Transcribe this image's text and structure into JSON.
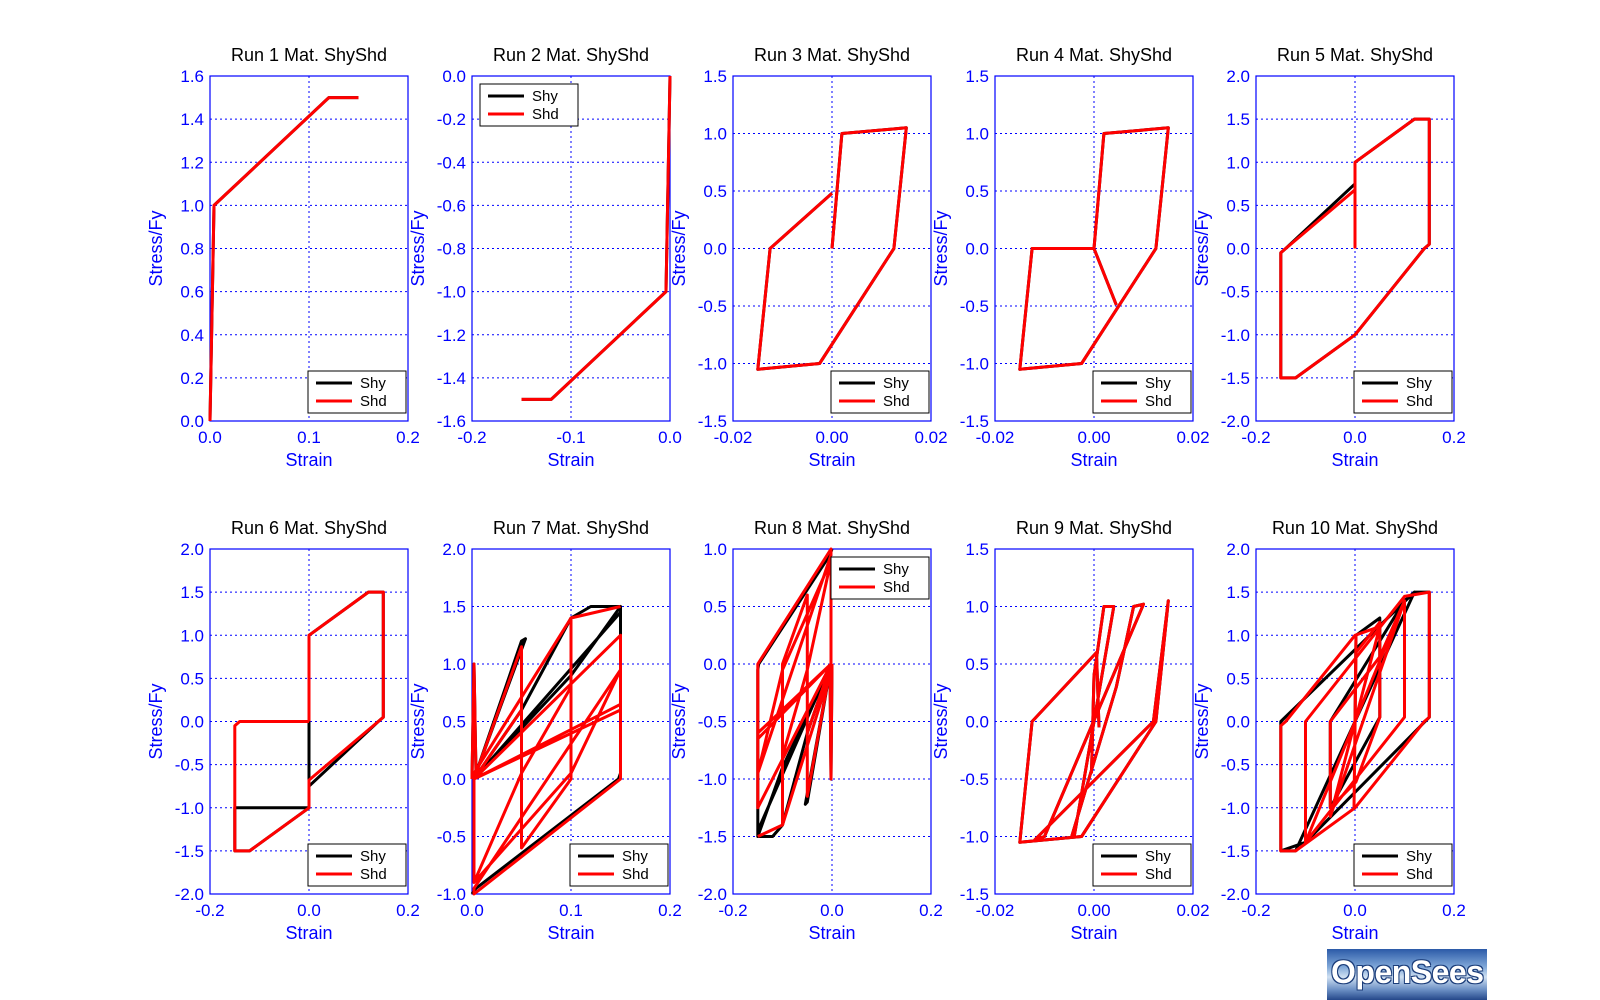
{
  "colors": {
    "Shy": "#000000",
    "Shd": "#ff0000",
    "axes": "#0000ff",
    "grid": "#0000ff",
    "text": "#000000"
  },
  "logo": {
    "text": "OpenSees"
  },
  "chart_data": [
    {
      "type": "line",
      "title": "Run 1   Mat. ShyShd",
      "xlabel": "Strain",
      "ylabel": "Stress/Fy",
      "xlim": [
        0,
        0.2
      ],
      "ylim": [
        0,
        1.6
      ],
      "xticks": [
        "0.0",
        "0.1",
        "0.2"
      ],
      "yticks": [
        "0.0",
        "0.2",
        "0.4",
        "0.6",
        "0.8",
        "1.0",
        "1.2",
        "1.4",
        "1.6"
      ],
      "legend": "bottom-right",
      "series": [
        {
          "name": "Shy",
          "x": [
            0,
            0.002,
            0.004,
            0.12,
            0.15
          ],
          "y": [
            0,
            0.5,
            1.0,
            1.5,
            1.5
          ]
        },
        {
          "name": "Shd",
          "x": [
            0,
            0.002,
            0.004,
            0.12,
            0.15
          ],
          "y": [
            0,
            0.5,
            1.0,
            1.5,
            1.5
          ]
        }
      ]
    },
    {
      "type": "line",
      "title": "Run 2   Mat. ShyShd",
      "xlabel": "Strain",
      "ylabel": "Stress/Fy",
      "xlim": [
        -0.2,
        0
      ],
      "ylim": [
        -1.6,
        0
      ],
      "xticks": [
        "-0.2",
        "-0.1",
        "0.0"
      ],
      "yticks": [
        "-1.6",
        "-1.4",
        "-1.2",
        "-1.0",
        "-0.8",
        "-0.6",
        "-0.4",
        "-0.2",
        "0.0"
      ],
      "legend": "top-left",
      "series": [
        {
          "name": "Shy",
          "x": [
            0,
            -0.002,
            -0.004,
            -0.12,
            -0.15
          ],
          "y": [
            0,
            -0.5,
            -1.0,
            -1.5,
            -1.5
          ]
        },
        {
          "name": "Shd",
          "x": [
            0,
            -0.002,
            -0.004,
            -0.12,
            -0.15
          ],
          "y": [
            0,
            -0.5,
            -1.0,
            -1.5,
            -1.5
          ]
        }
      ]
    },
    {
      "type": "line",
      "title": "Run 3   Mat. ShyShd",
      "xlabel": "Strain",
      "ylabel": "Stress/Fy",
      "xlim": [
        -0.02,
        0.02
      ],
      "ylim": [
        -1.5,
        1.5
      ],
      "xticks": [
        "-0.02",
        "0.00",
        "0.02"
      ],
      "yticks": [
        "-1.5",
        "-1.0",
        "-0.5",
        "0.0",
        "0.5",
        "1.0",
        "1.5"
      ],
      "legend": "bottom-right",
      "series": [
        {
          "name": "Shy",
          "x": [
            0,
            0.002,
            0.015,
            0.0125,
            -0.0025,
            -0.015,
            -0.0125,
            0
          ],
          "y": [
            0,
            1.0,
            1.05,
            0,
            -1.0,
            -1.05,
            0,
            0.48
          ]
        },
        {
          "name": "Shd",
          "x": [
            0,
            0.002,
            0.015,
            0.0125,
            -0.0025,
            -0.015,
            -0.0125,
            0
          ],
          "y": [
            0,
            1.0,
            1.05,
            0,
            -1.0,
            -1.05,
            0,
            0.48
          ]
        }
      ]
    },
    {
      "type": "line",
      "title": "Run 4   Mat. ShyShd",
      "xlabel": "Strain",
      "ylabel": "Stress/Fy",
      "xlim": [
        -0.02,
        0.02
      ],
      "ylim": [
        -1.5,
        1.5
      ],
      "xticks": [
        "-0.02",
        "0.00",
        "0.02"
      ],
      "yticks": [
        "-1.5",
        "-1.0",
        "-0.5",
        "0.0",
        "0.5",
        "1.0",
        "1.5"
      ],
      "legend": "bottom-right",
      "series": [
        {
          "name": "Shy",
          "x": [
            0,
            0.002,
            0.015,
            0.0125,
            -0.0025,
            -0.015,
            -0.0125,
            0,
            0.0045
          ],
          "y": [
            0,
            1.0,
            1.05,
            0,
            -1.0,
            -1.05,
            0,
            0,
            -0.49
          ]
        },
        {
          "name": "Shd",
          "x": [
            0,
            0.002,
            0.015,
            0.0125,
            -0.0025,
            -0.015,
            -0.0125,
            0,
            0.0045
          ],
          "y": [
            0,
            1.0,
            1.05,
            0,
            -1.0,
            -1.05,
            0,
            0,
            -0.49
          ]
        }
      ]
    },
    {
      "type": "line",
      "title": "Run 5   Mat. ShyShd",
      "xlabel": "Strain",
      "ylabel": "Stress/Fy",
      "xlim": [
        -0.2,
        0.2
      ],
      "ylim": [
        -2,
        2
      ],
      "xticks": [
        "-0.2",
        "0.0",
        "0.2"
      ],
      "yticks": [
        "-2.0",
        "-1.5",
        "-1.0",
        "-0.5",
        "0.0",
        "0.5",
        "1.0",
        "1.5",
        "2.0"
      ],
      "legend": "bottom-right",
      "series": [
        {
          "name": "Shy",
          "x": [
            0,
            0,
            0.12,
            0.15,
            0.15,
            0.14,
            0,
            -0.12,
            -0.15,
            -0.15,
            -0.14,
            0
          ],
          "y": [
            0,
            1.0,
            1.5,
            1.5,
            0.05,
            0,
            -1.0,
            -1.5,
            -1.5,
            -0.05,
            0,
            0.75
          ]
        },
        {
          "name": "Shd",
          "x": [
            0,
            0,
            0.12,
            0.15,
            0.15,
            0.14,
            0,
            -0.12,
            -0.15,
            -0.15,
            -0.14,
            0
          ],
          "y": [
            0,
            1.0,
            1.5,
            1.5,
            0.05,
            0,
            -1.0,
            -1.5,
            -1.5,
            -0.05,
            0,
            0.68
          ]
        }
      ]
    },
    {
      "type": "line",
      "title": "Run 6   Mat. ShyShd",
      "xlabel": "Strain",
      "ylabel": "Stress/Fy",
      "xlim": [
        -0.2,
        0.2
      ],
      "ylim": [
        -2,
        2
      ],
      "xticks": [
        "-0.2",
        "0.0",
        "0.2"
      ],
      "yticks": [
        "-2.0",
        "-1.5",
        "-1.0",
        "-0.5",
        "0.0",
        "0.5",
        "1.0",
        "1.5",
        "2.0"
      ],
      "legend": "bottom-right",
      "series": [
        {
          "name": "Shy",
          "x": [
            0,
            0,
            0.12,
            0.15,
            0.15,
            0.14,
            0,
            0,
            -0.14,
            -0.15,
            -0.15,
            -0.12,
            0,
            0,
            -0.14
          ],
          "y": [
            0,
            1.0,
            1.5,
            1.5,
            0.05,
            0,
            -0.75,
            -1.0,
            -1.0,
            -1.0,
            -1.5,
            -1.5,
            -1.0,
            0,
            0
          ]
        },
        {
          "name": "Shd",
          "x": [
            0,
            0,
            0.12,
            0.15,
            0.15,
            0.14,
            0,
            0,
            -0.12,
            -0.15,
            -0.15,
            -0.14,
            0
          ],
          "y": [
            0,
            1.0,
            1.5,
            1.5,
            0.05,
            0,
            -0.68,
            -1.0,
            -1.5,
            -1.5,
            -0.05,
            0,
            0
          ]
        }
      ]
    },
    {
      "type": "line",
      "title": "Run 7   Mat. ShyShd",
      "xlabel": "Strain",
      "ylabel": "Stress/Fy",
      "xlim": [
        0,
        0.2
      ],
      "ylim": [
        -1,
        2
      ],
      "xticks": [
        "0.0",
        "0.1",
        "0.2"
      ],
      "yticks": [
        "-1.0",
        "-0.5",
        "0.0",
        "0.5",
        "1.0",
        "1.5",
        "2.0"
      ],
      "legend": "bottom-right",
      "series": [
        {
          "name": "Shy",
          "x": [
            0,
            0.002,
            0.004,
            0.05,
            0.054,
            0.004,
            0.002,
            0.05,
            0.1,
            0.12,
            0.15,
            0.15,
            0.002,
            0.1,
            0.15,
            0.15,
            0.148,
            0.004,
            0
          ],
          "y": [
            0,
            1.0,
            0.05,
            1.2,
            1.22,
            0.05,
            0,
            0.6,
            1.4,
            1.5,
            1.5,
            1.45,
            0,
            0.9,
            1.5,
            0.05,
            0,
            -0.95,
            -1.0
          ]
        },
        {
          "name": "Shd",
          "x": [
            0,
            0.002,
            0.004,
            0.002,
            0.05,
            0.05,
            0.002,
            0.002,
            0.05,
            0.1,
            0.1,
            0.002,
            0.002,
            0.1,
            0.15,
            0.15,
            0.002,
            0.15,
            0.15,
            0.002,
            0.002,
            0.15,
            0.15,
            0.002,
            0.05,
            0.05,
            0.1,
            0.1,
            0.15
          ],
          "y": [
            0,
            1.0,
            0.05,
            0,
            0.6,
            1.15,
            0,
            -0.9,
            0.05,
            0.8,
            1.4,
            0.05,
            -0.9,
            0.05,
            0.95,
            1.25,
            0,
            0.6,
            0.95,
            -0.95,
            -1.0,
            0,
            0.65,
            0,
            1.15,
            -0.6,
            0,
            1.4,
            1.5
          ]
        }
      ]
    },
    {
      "type": "line",
      "title": "Run 8   Mat. ShyShd",
      "xlabel": "Strain",
      "ylabel": "Stress/Fy",
      "xlim": [
        -0.2,
        0.2
      ],
      "ylim": [
        -2,
        1
      ],
      "xticks": [
        "-0.2",
        "0.0",
        "0.2"
      ],
      "yticks": [
        "-2.0",
        "-1.5",
        "-1.0",
        "-0.5",
        "0.0",
        "0.5",
        "1.0"
      ],
      "legend": "top-right",
      "series": [
        {
          "name": "Shy",
          "x": [
            0,
            -0.002,
            -0.004,
            -0.05,
            -0.054,
            -0.004,
            -0.002,
            -0.05,
            -0.1,
            -0.12,
            -0.15,
            -0.15,
            -0.002,
            -0.1,
            -0.15,
            -0.15,
            -0.148,
            -0.004,
            0
          ],
          "y": [
            0,
            -1.0,
            -0.05,
            -1.2,
            -1.22,
            -0.05,
            0,
            -0.6,
            -1.4,
            -1.5,
            -1.5,
            -1.45,
            0,
            -0.9,
            -1.5,
            -0.05,
            0,
            0.95,
            1.0
          ]
        },
        {
          "name": "Shd",
          "x": [
            0,
            -0.002,
            -0.004,
            -0.002,
            -0.05,
            -0.05,
            -0.002,
            -0.002,
            -0.05,
            -0.1,
            -0.1,
            -0.002,
            -0.002,
            -0.1,
            -0.15,
            -0.15,
            -0.002,
            -0.15,
            -0.15,
            -0.002,
            -0.002,
            -0.15,
            -0.15,
            -0.002,
            -0.05,
            -0.05,
            -0.1,
            -0.1,
            -0.15
          ],
          "y": [
            0,
            -1.0,
            -0.05,
            0,
            -0.6,
            -1.15,
            0,
            0.9,
            -0.05,
            -0.8,
            -1.4,
            -0.05,
            0.9,
            -0.05,
            -0.95,
            -1.25,
            0,
            -0.6,
            -0.95,
            0.95,
            1.0,
            0,
            -0.65,
            0,
            -1.15,
            0.6,
            0,
            -1.4,
            -1.5
          ]
        }
      ]
    },
    {
      "type": "line",
      "title": "Run 9   Mat. ShyShd",
      "xlabel": "Strain",
      "ylabel": "Stress/Fy",
      "xlim": [
        -0.02,
        0.02
      ],
      "ylim": [
        -1.5,
        1.5
      ],
      "xticks": [
        "-0.02",
        "0.00",
        "0.02"
      ],
      "yticks": [
        "-1.5",
        "-1.0",
        "-0.5",
        "0.0",
        "0.5",
        "1.0",
        "1.5"
      ],
      "legend": "bottom-right",
      "series": [
        {
          "name": "Shy",
          "x": [
            -0.0005,
            0,
            0.002,
            0.004,
            -0.004,
            -0.0045,
            0.0045,
            0.008,
            0.01,
            -0.01,
            -0.012,
            0.012,
            0.015,
            0.0125,
            -0.0025,
            -0.015,
            -0.0125,
            0.0005,
            0.001
          ],
          "y": [
            -0.45,
            0.4,
            1.0,
            1.0,
            -1.0,
            -1.0,
            0.3,
            1.0,
            1.02,
            -1.0,
            -1.03,
            0,
            1.05,
            0,
            -1.0,
            -1.05,
            0,
            0.6,
            -0.05
          ]
        },
        {
          "name": "Shd",
          "x": [
            -0.0005,
            0,
            0.002,
            0.004,
            -0.004,
            -0.0045,
            0.0045,
            0.008,
            0.01,
            -0.01,
            -0.012,
            0.012,
            0.015,
            0.0125,
            -0.0025,
            -0.015,
            -0.0125,
            0.0005,
            0.001
          ],
          "y": [
            -0.45,
            0.4,
            1.0,
            1.0,
            -1.0,
            -1.0,
            0.3,
            1.0,
            1.02,
            -1.0,
            -1.03,
            0,
            1.05,
            0,
            -1.0,
            -1.05,
            0,
            0.6,
            -0.05
          ]
        }
      ]
    },
    {
      "type": "line",
      "title": "Run 10   Mat. ShyShd",
      "xlabel": "Strain",
      "ylabel": "Stress/Fy",
      "xlim": [
        -0.2,
        0.2
      ],
      "ylim": [
        -2,
        2
      ],
      "xticks": [
        "-0.2",
        "0.0",
        "0.2"
      ],
      "yticks": [
        "-2.0",
        "-1.5",
        "-1.0",
        "-0.5",
        "0.0",
        "0.5",
        "1.0",
        "1.5",
        "2.0"
      ],
      "legend": "bottom-right",
      "series": [
        {
          "name": "Shy",
          "x": [
            0,
            0.002,
            0.05,
            0.05,
            -0.05,
            -0.05,
            0.1,
            0.12,
            0.15,
            0.15,
            -0.1,
            -0.15,
            -0.15,
            0.12,
            -0.12,
            -0.15
          ],
          "y": [
            0,
            1.0,
            1.2,
            0.05,
            -1.0,
            0,
            1.4,
            1.5,
            1.5,
            0.05,
            -1.4,
            -1.5,
            0,
            1.5,
            -1.5,
            -1.5
          ]
        },
        {
          "name": "Shd",
          "x": [
            0,
            0.002,
            -0.002,
            0.002,
            0.05,
            0.05,
            0.002,
            -0.05,
            -0.05,
            0.05,
            0.1,
            0.1,
            -0.1,
            -0.1,
            0.1,
            0.15,
            0.15,
            0.14,
            0,
            -0.12,
            -0.15,
            -0.15,
            -0.14,
            0,
            0.05,
            -0.05,
            0.1,
            -0.1
          ],
          "y": [
            0,
            1.0,
            -1.0,
            0.8,
            1.15,
            0.05,
            -0.7,
            -1.0,
            0,
            0.75,
            1.4,
            0.05,
            -1.4,
            0,
            1.45,
            1.5,
            0.05,
            0,
            -1.0,
            -1.5,
            -1.5,
            -0.05,
            0,
            1.0,
            1.1,
            -1.1,
            1.4,
            -1.4
          ]
        }
      ]
    }
  ]
}
